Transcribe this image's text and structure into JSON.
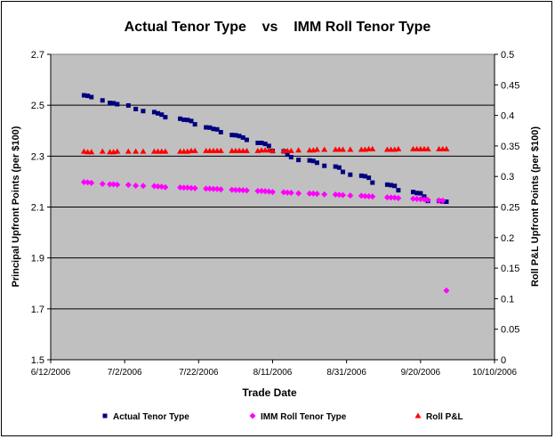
{
  "chart_data": {
    "type": "scatter",
    "title": "Actual Tenor Type    vs    IMM Roll Tenor Type",
    "xlabel": "Trade Date",
    "ylabel_left": "Principal Upfront Points (per $100)",
    "ylabel_right": "Roll P&L Upfront Points (per $100)",
    "x_ticks": [
      "6/12/2006",
      "7/2/2006",
      "7/22/2006",
      "8/11/2006",
      "8/31/2006",
      "9/20/2006",
      "10/10/2006"
    ],
    "x_range": [
      "2006-06-12",
      "2006-10-10"
    ],
    "y_left_ticks": [
      "1.5",
      "1.7",
      "1.9",
      "2.1",
      "2.3",
      "2.5",
      "2.7"
    ],
    "y_left_range": [
      1.5,
      2.7
    ],
    "y_right_ticks": [
      "0",
      "0.05",
      "0.1",
      "0.15",
      "0.2",
      "0.25",
      "0.3",
      "0.35",
      "0.4",
      "0.45",
      "0.5"
    ],
    "y_right_range": [
      0,
      0.5
    ],
    "grid": "horizontal-major-left",
    "background": "#c0c0c0",
    "legend_position": "bottom",
    "series": [
      {
        "name": "Actual Tenor Type",
        "axis": "left",
        "marker": "square",
        "color": "#000080",
        "points": [
          [
            "2006-06-21",
            2.539
          ],
          [
            "2006-06-22",
            2.537
          ],
          [
            "2006-06-23",
            2.532
          ],
          [
            "2006-06-26",
            2.519
          ],
          [
            "2006-06-28",
            2.509
          ],
          [
            "2006-06-29",
            2.508
          ],
          [
            "2006-06-30",
            2.504
          ],
          [
            "2006-07-03",
            2.499
          ],
          [
            "2006-07-05",
            2.485
          ],
          [
            "2006-07-07",
            2.477
          ],
          [
            "2006-07-10",
            2.473
          ],
          [
            "2006-07-11",
            2.468
          ],
          [
            "2006-07-12",
            2.463
          ],
          [
            "2006-07-13",
            2.453
          ],
          [
            "2006-07-17",
            2.447
          ],
          [
            "2006-07-18",
            2.443
          ],
          [
            "2006-07-19",
            2.442
          ],
          [
            "2006-07-20",
            2.438
          ],
          [
            "2006-07-21",
            2.425
          ],
          [
            "2006-07-24",
            2.413
          ],
          [
            "2006-07-25",
            2.412
          ],
          [
            "2006-07-26",
            2.407
          ],
          [
            "2006-07-27",
            2.405
          ],
          [
            "2006-07-28",
            2.394
          ],
          [
            "2006-07-31",
            2.383
          ],
          [
            "2006-08-01",
            2.382
          ],
          [
            "2006-08-02",
            2.379
          ],
          [
            "2006-08-03",
            2.373
          ],
          [
            "2006-08-04",
            2.364
          ],
          [
            "2006-08-07",
            2.352
          ],
          [
            "2006-08-08",
            2.352
          ],
          [
            "2006-08-09",
            2.348
          ],
          [
            "2006-08-10",
            2.34
          ],
          [
            "2006-08-11",
            2.32
          ],
          [
            "2006-08-14",
            2.319
          ],
          [
            "2006-08-15",
            2.306
          ],
          [
            "2006-08-16",
            2.296
          ],
          [
            "2006-08-18",
            2.285
          ],
          [
            "2006-08-21",
            2.283
          ],
          [
            "2006-08-22",
            2.281
          ],
          [
            "2006-08-23",
            2.274
          ],
          [
            "2006-08-25",
            2.262
          ],
          [
            "2006-08-28",
            2.259
          ],
          [
            "2006-08-29",
            2.255
          ],
          [
            "2006-08-30",
            2.238
          ],
          [
            "2006-09-01",
            2.227
          ],
          [
            "2006-09-04",
            2.223
          ],
          [
            "2006-09-05",
            2.221
          ],
          [
            "2006-09-06",
            2.215
          ],
          [
            "2006-09-07",
            2.196
          ],
          [
            "2006-09-11",
            2.188
          ],
          [
            "2006-09-12",
            2.186
          ],
          [
            "2006-09-13",
            2.183
          ],
          [
            "2006-09-14",
            2.166
          ],
          [
            "2006-09-18",
            2.159
          ],
          [
            "2006-09-19",
            2.155
          ],
          [
            "2006-09-20",
            2.154
          ],
          [
            "2006-09-21",
            2.141
          ],
          [
            "2006-09-22",
            2.124
          ],
          [
            "2006-09-25",
            2.124
          ],
          [
            "2006-09-26",
            2.122
          ],
          [
            "2006-09-27",
            2.121
          ]
        ]
      },
      {
        "name": "IMM Roll Tenor Type",
        "axis": "left",
        "marker": "diamond",
        "color": "#ff00ff",
        "points": [
          [
            "2006-06-21",
            2.198
          ],
          [
            "2006-06-22",
            2.197
          ],
          [
            "2006-06-23",
            2.195
          ],
          [
            "2006-06-26",
            2.191
          ],
          [
            "2006-06-28",
            2.189
          ],
          [
            "2006-06-29",
            2.189
          ],
          [
            "2006-06-30",
            2.188
          ],
          [
            "2006-07-03",
            2.187
          ],
          [
            "2006-07-05",
            2.184
          ],
          [
            "2006-07-07",
            2.183
          ],
          [
            "2006-07-10",
            2.182
          ],
          [
            "2006-07-11",
            2.181
          ],
          [
            "2006-07-12",
            2.18
          ],
          [
            "2006-07-13",
            2.178
          ],
          [
            "2006-07-17",
            2.177
          ],
          [
            "2006-07-18",
            2.176
          ],
          [
            "2006-07-19",
            2.176
          ],
          [
            "2006-07-20",
            2.175
          ],
          [
            "2006-07-21",
            2.174
          ],
          [
            "2006-07-24",
            2.172
          ],
          [
            "2006-07-25",
            2.172
          ],
          [
            "2006-07-26",
            2.171
          ],
          [
            "2006-07-27",
            2.171
          ],
          [
            "2006-07-28",
            2.169
          ],
          [
            "2006-07-31",
            2.168
          ],
          [
            "2006-08-01",
            2.167
          ],
          [
            "2006-08-02",
            2.167
          ],
          [
            "2006-08-03",
            2.166
          ],
          [
            "2006-08-04",
            2.165
          ],
          [
            "2006-08-07",
            2.163
          ],
          [
            "2006-08-08",
            2.163
          ],
          [
            "2006-08-09",
            2.162
          ],
          [
            "2006-08-10",
            2.161
          ],
          [
            "2006-08-11",
            2.159
          ],
          [
            "2006-08-14",
            2.158
          ],
          [
            "2006-08-15",
            2.157
          ],
          [
            "2006-08-16",
            2.156
          ],
          [
            "2006-08-18",
            2.154
          ],
          [
            "2006-08-21",
            2.153
          ],
          [
            "2006-08-22",
            2.153
          ],
          [
            "2006-08-23",
            2.152
          ],
          [
            "2006-08-25",
            2.15
          ],
          [
            "2006-08-28",
            2.149
          ],
          [
            "2006-08-29",
            2.148
          ],
          [
            "2006-08-30",
            2.147
          ],
          [
            "2006-09-01",
            2.145
          ],
          [
            "2006-09-04",
            2.144
          ],
          [
            "2006-09-05",
            2.143
          ],
          [
            "2006-09-06",
            2.142
          ],
          [
            "2006-09-07",
            2.141
          ],
          [
            "2006-09-11",
            2.138
          ],
          [
            "2006-09-12",
            2.137
          ],
          [
            "2006-09-13",
            2.137
          ],
          [
            "2006-09-14",
            2.135
          ],
          [
            "2006-09-18",
            2.133
          ],
          [
            "2006-09-19",
            2.132
          ],
          [
            "2006-09-20",
            2.131
          ],
          [
            "2006-09-21",
            2.13
          ],
          [
            "2006-09-22",
            2.128
          ],
          [
            "2006-09-25",
            2.126
          ],
          [
            "2006-09-26",
            2.125
          ],
          [
            "2006-09-27",
            1.772
          ]
        ]
      },
      {
        "name": "Roll P&L",
        "axis": "right",
        "marker": "triangle",
        "color": "#ff0000",
        "points": [
          [
            "2006-06-21",
            0.341
          ],
          [
            "2006-06-22",
            0.34
          ],
          [
            "2006-06-23",
            0.34
          ],
          [
            "2006-06-26",
            0.341
          ],
          [
            "2006-06-28",
            0.34
          ],
          [
            "2006-06-29",
            0.34
          ],
          [
            "2006-06-30",
            0.341
          ],
          [
            "2006-07-03",
            0.341
          ],
          [
            "2006-07-05",
            0.341
          ],
          [
            "2006-07-07",
            0.341
          ],
          [
            "2006-07-10",
            0.341
          ],
          [
            "2006-07-11",
            0.341
          ],
          [
            "2006-07-12",
            0.341
          ],
          [
            "2006-07-13",
            0.341
          ],
          [
            "2006-07-17",
            0.341
          ],
          [
            "2006-07-18",
            0.341
          ],
          [
            "2006-07-19",
            0.341
          ],
          [
            "2006-07-20",
            0.342
          ],
          [
            "2006-07-21",
            0.342
          ],
          [
            "2006-07-24",
            0.342
          ],
          [
            "2006-07-25",
            0.342
          ],
          [
            "2006-07-26",
            0.342
          ],
          [
            "2006-07-27",
            0.342
          ],
          [
            "2006-07-28",
            0.342
          ],
          [
            "2006-07-31",
            0.342
          ],
          [
            "2006-08-01",
            0.342
          ],
          [
            "2006-08-02",
            0.342
          ],
          [
            "2006-08-03",
            0.342
          ],
          [
            "2006-08-04",
            0.342
          ],
          [
            "2006-08-07",
            0.342
          ],
          [
            "2006-08-08",
            0.343
          ],
          [
            "2006-08-09",
            0.343
          ],
          [
            "2006-08-10",
            0.343
          ],
          [
            "2006-08-11",
            0.342
          ],
          [
            "2006-08-14",
            0.342
          ],
          [
            "2006-08-15",
            0.342
          ],
          [
            "2006-08-16",
            0.342
          ],
          [
            "2006-08-18",
            0.343
          ],
          [
            "2006-08-21",
            0.343
          ],
          [
            "2006-08-22",
            0.343
          ],
          [
            "2006-08-23",
            0.344
          ],
          [
            "2006-08-25",
            0.344
          ],
          [
            "2006-08-28",
            0.344
          ],
          [
            "2006-08-29",
            0.344
          ],
          [
            "2006-08-30",
            0.344
          ],
          [
            "2006-09-01",
            0.344
          ],
          [
            "2006-09-04",
            0.344
          ],
          [
            "2006-09-05",
            0.344
          ],
          [
            "2006-09-06",
            0.345
          ],
          [
            "2006-09-07",
            0.345
          ],
          [
            "2006-09-11",
            0.344
          ],
          [
            "2006-09-12",
            0.344
          ],
          [
            "2006-09-13",
            0.344
          ],
          [
            "2006-09-14",
            0.345
          ],
          [
            "2006-09-18",
            0.345
          ],
          [
            "2006-09-19",
            0.345
          ],
          [
            "2006-09-20",
            0.345
          ],
          [
            "2006-09-21",
            0.345
          ],
          [
            "2006-09-22",
            0.345
          ],
          [
            "2006-09-25",
            0.345
          ],
          [
            "2006-09-26",
            0.345
          ],
          [
            "2006-09-27",
            0.345
          ]
        ]
      }
    ]
  }
}
